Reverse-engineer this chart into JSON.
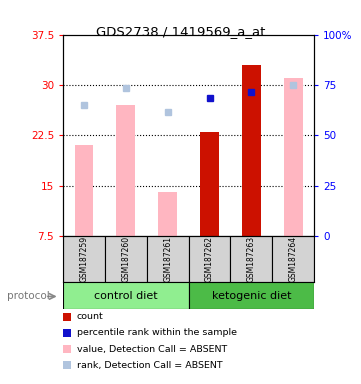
{
  "title": "GDS2738 / 1419569_a_at",
  "samples": [
    "GSM187259",
    "GSM187260",
    "GSM187261",
    "GSM187262",
    "GSM187263",
    "GSM187264"
  ],
  "ylim_left": [
    7.5,
    37.5
  ],
  "ylim_right": [
    0,
    100
  ],
  "yticks_left": [
    7.5,
    15,
    22.5,
    30,
    37.5
  ],
  "yticks_right": [
    0,
    25,
    50,
    75,
    100
  ],
  "ytick_labels_left": [
    "7.5",
    "15",
    "22.5",
    "30",
    "37.5"
  ],
  "ytick_labels_right": [
    "0",
    "25",
    "50",
    "75",
    "100%"
  ],
  "bar_values": [
    21.0,
    27.0,
    14.0,
    23.0,
    33.0,
    31.0
  ],
  "bar_colors": [
    "#FFB6C1",
    "#FFB6C1",
    "#FFB6C1",
    "#CC1100",
    "#CC1100",
    "#FFB6C1"
  ],
  "square_values": [
    27.0,
    29.5,
    26.0,
    28.0,
    29.0,
    30.0
  ],
  "square_colors": [
    "#B0C4DE",
    "#B0C4DE",
    "#B0C4DE",
    "#1111CC",
    "#1111CC",
    "#B0C4DE"
  ],
  "bar_bottom": 7.5,
  "bar_width": 0.45,
  "legend_items": [
    {
      "label": "count",
      "color": "#CC1100"
    },
    {
      "label": "percentile rank within the sample",
      "color": "#1111CC"
    },
    {
      "label": "value, Detection Call = ABSENT",
      "color": "#FFB6C1"
    },
    {
      "label": "rank, Detection Call = ABSENT",
      "color": "#B0C4DE"
    }
  ],
  "control_color": "#90EE90",
  "keto_color": "#4CBB47",
  "sample_bg": "#D3D3D3",
  "hline_values": [
    15,
    22.5,
    30
  ],
  "protocol_label": "protocol"
}
